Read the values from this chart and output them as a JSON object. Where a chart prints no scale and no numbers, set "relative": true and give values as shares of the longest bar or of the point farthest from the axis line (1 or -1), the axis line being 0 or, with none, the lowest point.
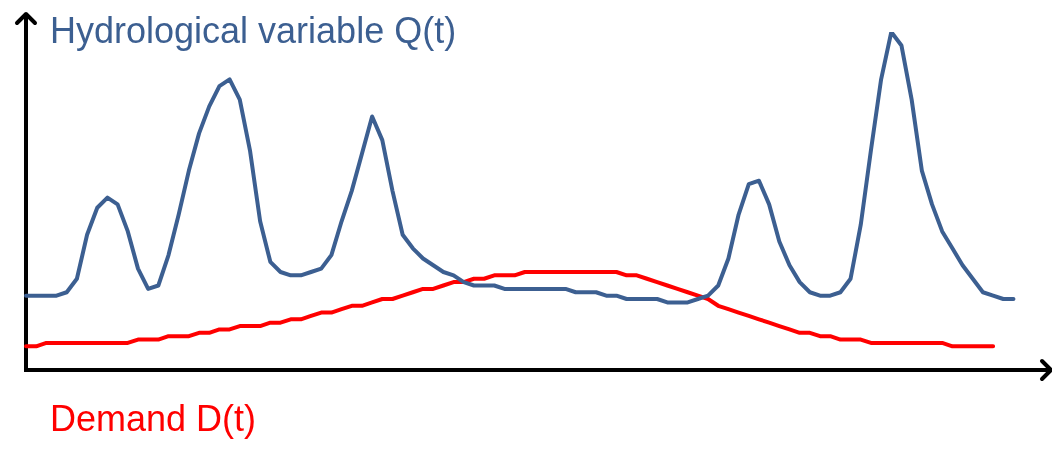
{
  "chart_data": {
    "type": "line",
    "relative": true,
    "tick_labels": false,
    "grid": false,
    "legend": false,
    "marker": "none",
    "line_style": "solid",
    "categories": [
      null,
      null,
      null,
      null,
      null,
      null,
      null,
      null,
      null,
      null,
      null,
      null,
      null,
      null,
      null,
      null,
      null,
      null,
      null,
      null,
      null,
      null,
      null,
      null,
      null,
      null,
      null,
      null,
      null,
      null,
      null,
      null,
      null,
      null,
      null,
      null,
      null,
      null,
      null,
      null,
      null,
      null,
      null,
      null,
      null,
      null,
      null,
      null,
      null,
      null,
      null,
      null,
      null,
      null,
      null,
      null,
      null,
      null,
      null,
      null,
      null,
      null,
      null,
      null,
      null,
      null,
      null,
      null,
      null,
      null,
      null,
      null,
      null,
      null,
      null,
      null,
      null,
      null,
      null,
      null,
      null,
      null,
      null,
      null,
      null,
      null,
      null,
      null,
      null,
      null,
      null,
      null,
      null,
      null,
      null,
      null,
      null,
      null,
      null,
      null,
      null
    ],
    "series": [
      {
        "name": "Hydrological variable Q(t)",
        "color": "#3c5f91",
        "values": [
          0.22,
          0.22,
          0.22,
          0.22,
          0.23,
          0.27,
          0.4,
          0.48,
          0.51,
          0.49,
          0.41,
          0.3,
          0.24,
          0.25,
          0.34,
          0.46,
          0.59,
          0.7,
          0.78,
          0.84,
          0.86,
          0.8,
          0.65,
          0.44,
          0.32,
          0.29,
          0.28,
          0.28,
          0.29,
          0.3,
          0.34,
          0.44,
          0.53,
          0.64,
          0.75,
          0.68,
          0.53,
          0.4,
          0.36,
          0.33,
          0.31,
          0.29,
          0.28,
          0.26,
          0.25,
          0.25,
          0.25,
          0.24,
          0.24,
          0.24,
          0.24,
          0.24,
          0.24,
          0.24,
          0.23,
          0.23,
          0.23,
          0.22,
          0.22,
          0.21,
          0.21,
          0.21,
          0.21,
          0.2,
          0.2,
          0.2,
          0.21,
          0.22,
          0.25,
          0.33,
          0.46,
          0.55,
          0.56,
          0.49,
          0.38,
          0.31,
          0.26,
          0.23,
          0.22,
          0.22,
          0.23,
          0.27,
          0.43,
          0.65,
          0.86,
          1,
          0.96,
          0.8,
          0.59,
          0.49,
          0.41,
          0.36,
          0.31,
          0.27,
          0.23,
          0.22,
          0.21,
          0.21,
          null,
          null,
          null
        ]
      },
      {
        "name": "Demand D(t)",
        "color": "#ff0000",
        "values": [
          0.07,
          0.07,
          0.08,
          0.08,
          0.08,
          0.08,
          0.08,
          0.08,
          0.08,
          0.08,
          0.08,
          0.09,
          0.09,
          0.09,
          0.1,
          0.1,
          0.1,
          0.11,
          0.11,
          0.12,
          0.12,
          0.13,
          0.13,
          0.13,
          0.14,
          0.14,
          0.15,
          0.15,
          0.16,
          0.17,
          0.17,
          0.18,
          0.19,
          0.19,
          0.2,
          0.21,
          0.21,
          0.22,
          0.23,
          0.24,
          0.24,
          0.25,
          0.26,
          0.26,
          0.27,
          0.27,
          0.28,
          0.28,
          0.28,
          0.29,
          0.29,
          0.29,
          0.29,
          0.29,
          0.29,
          0.29,
          0.29,
          0.29,
          0.29,
          0.28,
          0.28,
          0.27,
          0.26,
          0.25,
          0.24,
          0.23,
          0.22,
          0.21,
          0.19,
          0.18,
          0.17,
          0.16,
          0.15,
          0.14,
          0.13,
          0.12,
          0.11,
          0.11,
          0.1,
          0.1,
          0.09,
          0.09,
          0.09,
          0.08,
          0.08,
          0.08,
          0.08,
          0.08,
          0.08,
          0.08,
          0.08,
          0.07,
          0.07,
          0.07,
          0.07,
          0.07,
          null,
          null,
          null,
          null,
          null
        ]
      }
    ]
  }
}
